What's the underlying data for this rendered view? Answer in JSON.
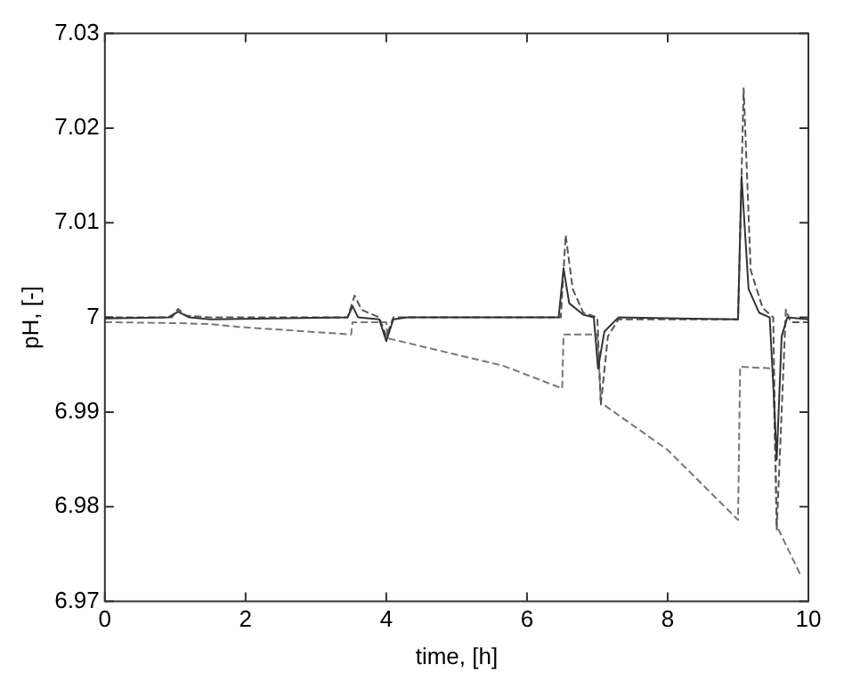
{
  "chart_data": {
    "type": "line",
    "xlabel": "time, [h]",
    "ylabel": "pH, [-]",
    "xlim": [
      0,
      10
    ],
    "xticks": [
      0,
      2,
      4,
      6,
      8,
      10
    ],
    "ylim": [
      6.97,
      7.03
    ],
    "yticks": [
      6.97,
      6.98,
      6.99,
      7,
      7.01,
      7.02,
      7.03
    ],
    "grid": false,
    "legend": false,
    "marker": "none",
    "series": [
      {
        "color": "#333333",
        "line_style": "solid",
        "x": [
          0,
          0.9,
          1.04,
          1.2,
          1.5,
          3.45,
          3.52,
          3.6,
          3.9,
          4.0,
          4.1,
          4.3,
          6.45,
          6.52,
          6.6,
          6.8,
          6.95,
          7.01,
          7.1,
          7.3,
          9.0,
          9.05,
          9.15,
          9.3,
          9.45,
          9.5,
          9.55,
          9.62,
          9.7,
          10
        ],
        "values": [
          6.9999,
          7.0,
          7.0006,
          7.0,
          6.9998,
          7.0,
          7.0012,
          7.0,
          6.9998,
          6.9975,
          6.9998,
          7.0,
          7.0,
          7.0052,
          7.0015,
          7.0003,
          7.0,
          6.9946,
          6.9985,
          7.0,
          6.9998,
          7.0149,
          7.003,
          7.0005,
          7.0,
          6.993,
          6.985,
          6.998,
          7.0,
          6.9998
        ]
      },
      {
        "color": "#555555",
        "line_style": "dashed",
        "x": [
          0,
          0.95,
          1.04,
          1.15,
          1.5,
          3.45,
          3.55,
          3.65,
          3.9,
          4.0,
          4.1,
          6.48,
          6.55,
          6.65,
          6.8,
          7.0,
          7.05,
          7.15,
          7.3,
          9.0,
          9.08,
          9.18,
          9.35,
          9.5,
          9.55,
          9.62,
          9.68,
          9.75,
          10
        ],
        "values": [
          7.0,
          7.0,
          7.0009,
          7.0002,
          7.0,
          7.0,
          7.0023,
          7.0008,
          7.0,
          6.998,
          7.0,
          7.0,
          7.0087,
          7.003,
          7.0005,
          7.0,
          6.9908,
          6.998,
          6.9998,
          6.9998,
          7.0242,
          7.005,
          7.001,
          7.0,
          6.9776,
          6.99,
          7.0008,
          6.9995,
          6.9995
        ]
      },
      {
        "color": "#777777",
        "line_style": "dashed",
        "x": [
          0,
          1.0,
          1.5,
          1.9,
          3.5,
          3.52,
          4.0,
          4.02,
          5.66,
          6.5,
          6.52,
          7.0,
          7.05,
          8.0,
          9.0,
          9.03,
          9.5,
          9.55,
          9.9
        ],
        "values": [
          6.9995,
          6.9994,
          6.9993,
          6.999,
          6.9982,
          6.9995,
          6.9995,
          6.9978,
          6.9949,
          6.9925,
          6.9982,
          6.9982,
          6.991,
          6.986,
          6.9786,
          6.9948,
          6.9946,
          6.978,
          6.9726
        ]
      }
    ]
  }
}
